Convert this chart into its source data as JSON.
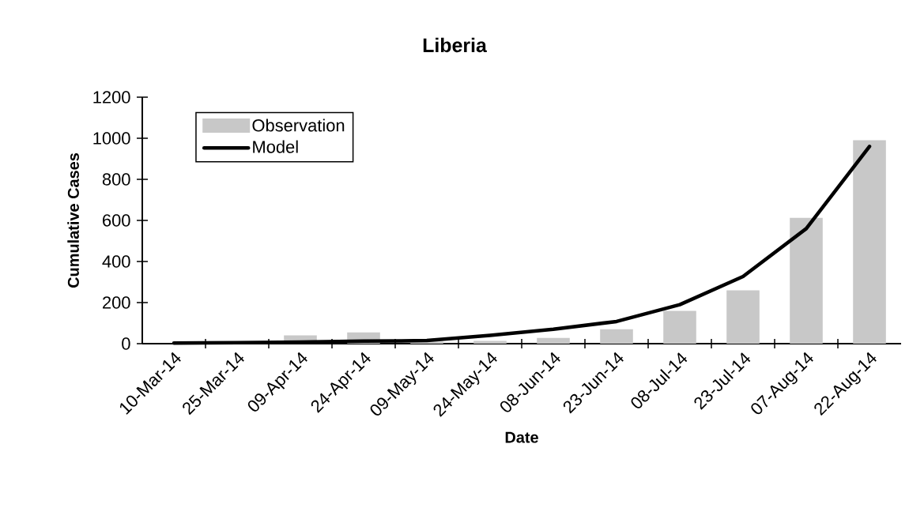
{
  "chart_data": {
    "type": "bar",
    "title": "Liberia",
    "xlabel": "Date",
    "ylabel": "Cumulative Cases",
    "categories": [
      "10-Mar-14",
      "25-Mar-14",
      "09-Apr-14",
      "24-Apr-14",
      "09-May-14",
      "24-May-14",
      "08-Jun-14",
      "23-Jun-14",
      "08-Jul-14",
      "23-Jul-14",
      "07-Aug-14",
      "22-Aug-14"
    ],
    "series": [
      {
        "name": "Observation",
        "color": "#c8c8c8",
        "values": [
          null,
          null,
          40,
          55,
          10,
          13,
          28,
          70,
          160,
          260,
          612,
          990
        ]
      },
      {
        "name": "Model",
        "type": "line",
        "color": "#000000",
        "values": [
          3,
          5,
          8,
          12,
          15,
          40,
          70,
          108,
          190,
          327,
          560,
          960
        ]
      }
    ],
    "ylim": [
      0,
      1200
    ],
    "yticks": [
      0,
      200,
      400,
      600,
      800,
      1000,
      1200
    ],
    "legend": "top left"
  }
}
